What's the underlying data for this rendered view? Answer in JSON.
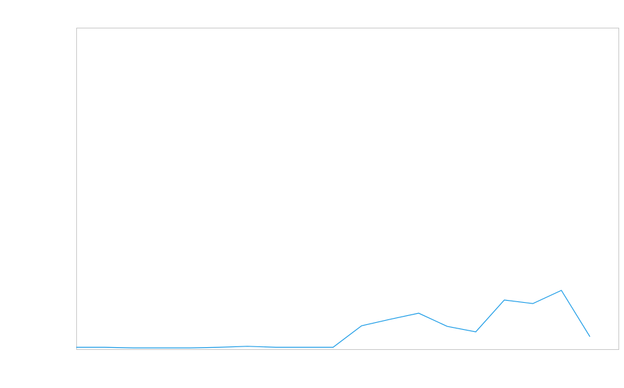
{
  "chart_data": {
    "type": "line",
    "x": [
      0,
      1,
      2,
      3,
      4,
      5,
      6,
      7,
      8,
      9,
      10,
      11,
      12,
      13,
      14,
      15,
      16,
      17,
      18
    ],
    "series": [
      {
        "color": "#1a9be6",
        "values": [
          0.6,
          0.6,
          0.4,
          0.4,
          0.4,
          0.6,
          0.9,
          0.6,
          0.6,
          0.6,
          7.3,
          9.3,
          11.2,
          7.1,
          5.4,
          15.3,
          14.2,
          18.3,
          3.9
        ]
      }
    ],
    "xlim": [
      0,
      19
    ],
    "ylim": [
      0,
      100
    ]
  }
}
